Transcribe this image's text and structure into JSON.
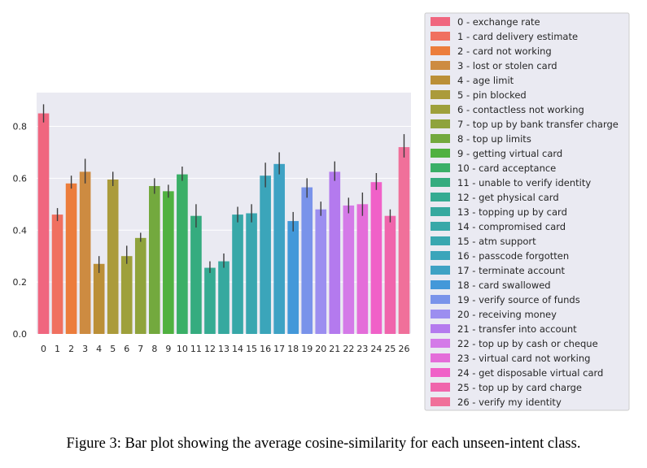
{
  "caption": "Figure 3: Bar plot showing the average cosine-similarity for each unseen-intent class.",
  "chart_data": {
    "type": "bar",
    "title": "",
    "xlabel": "",
    "ylabel": "",
    "ylim": [
      0,
      0.93
    ],
    "yticks": [
      0.0,
      0.2,
      0.4,
      0.6,
      0.8
    ],
    "ytick_labels": [
      "0.0",
      "0.2",
      "0.4",
      "0.6",
      "0.8"
    ],
    "grid": true,
    "legend_position": "right",
    "categories": [
      "0",
      "1",
      "2",
      "3",
      "4",
      "5",
      "6",
      "7",
      "8",
      "9",
      "10",
      "11",
      "12",
      "13",
      "14",
      "15",
      "16",
      "17",
      "18",
      "19",
      "20",
      "21",
      "22",
      "23",
      "24",
      "25",
      "26"
    ],
    "values": [
      0.85,
      0.46,
      0.58,
      0.625,
      0.27,
      0.595,
      0.3,
      0.37,
      0.57,
      0.55,
      0.615,
      0.455,
      0.255,
      0.28,
      0.46,
      0.465,
      0.61,
      0.655,
      0.435,
      0.565,
      0.48,
      0.625,
      0.495,
      0.5,
      0.585,
      0.455,
      0.72
    ],
    "err_low": [
      0.815,
      0.435,
      0.56,
      0.58,
      0.235,
      0.57,
      0.27,
      0.355,
      0.54,
      0.525,
      0.59,
      0.41,
      0.235,
      0.255,
      0.43,
      0.43,
      0.565,
      0.615,
      0.395,
      0.525,
      0.455,
      0.59,
      0.465,
      0.455,
      0.555,
      0.43,
      0.68
    ],
    "err_high": [
      0.885,
      0.485,
      0.61,
      0.675,
      0.3,
      0.625,
      0.34,
      0.39,
      0.6,
      0.575,
      0.645,
      0.5,
      0.28,
      0.31,
      0.49,
      0.5,
      0.66,
      0.7,
      0.47,
      0.6,
      0.51,
      0.665,
      0.525,
      0.545,
      0.62,
      0.48,
      0.77
    ],
    "colors": [
      "#f0667f",
      "#f07060",
      "#ec7d3c",
      "#cd8b41",
      "#bb8f37",
      "#ab9b3b",
      "#9ea03b",
      "#8fa33c",
      "#73a93e",
      "#50b140",
      "#3aaf67",
      "#35ac7f",
      "#35ab92",
      "#36a99f",
      "#37a8a8",
      "#39a7b0",
      "#3ba5ba",
      "#3ea2c4",
      "#4398d9",
      "#7993ea",
      "#9c8ef0",
      "#b47aee",
      "#d47ae8",
      "#e46dd9",
      "#f061c8",
      "#f065ac",
      "#f0709a"
    ],
    "legend": [
      "0 - exchange rate",
      "1 - card delivery estimate",
      "2 - card not working",
      "3 - lost or stolen card",
      "4 - age limit",
      "5 - pin blocked",
      "6 - contactless not working",
      "7 - top up by bank transfer charge",
      "8 - top up limits",
      "9 - getting virtual card",
      "10 - card acceptance",
      "11 - unable to verify identity",
      "12 - get physical card",
      "13 - topping up by card",
      "14 - compromised card",
      "15 - atm support",
      "16 - passcode forgotten",
      "17 - terminate account",
      "18 - card swallowed",
      "19 - verify source of funds",
      "20 - receiving money",
      "21 - transfer into account",
      "22 - top up by cash or cheque",
      "23 - virtual card not working",
      "24 - get disposable virtual card",
      "25 - top up by card charge",
      "26 - verify my identity"
    ]
  }
}
